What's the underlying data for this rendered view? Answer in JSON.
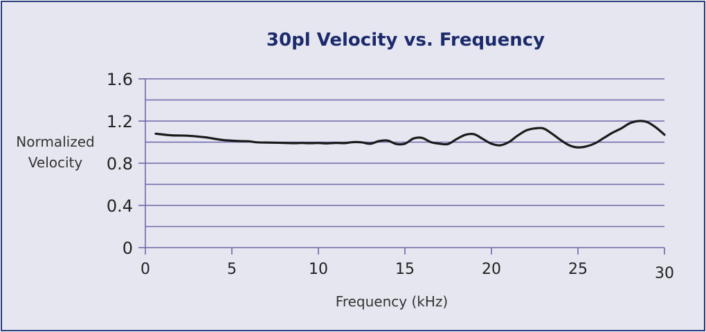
{
  "chart_data": {
    "type": "line",
    "title": "30pl Velocity vs. Frequency",
    "xlabel": "Frequency (kHz)",
    "ylabel_lines": [
      "Normalized",
      "Velocity"
    ],
    "xlim": [
      0,
      30
    ],
    "ylim": [
      0,
      1.6
    ],
    "xticks": [
      0,
      5,
      10,
      15,
      20,
      25,
      30
    ],
    "xtick_labels": [
      "0",
      "5",
      "10",
      "15",
      "20",
      "25",
      "30"
    ],
    "yticks": [
      0,
      0.4,
      0.8,
      1.2,
      1.6
    ],
    "ytick_labels": [
      "0",
      "0.4",
      "0.8",
      "1.2",
      "1.6"
    ],
    "gridlines_y": [
      0.2,
      0.4,
      0.6,
      0.8,
      1.0,
      1.2,
      1.4,
      1.6
    ],
    "grid": true,
    "series": [
      {
        "name": "30pl Velocity",
        "color": "#1a1a1a",
        "x": [
          0.6,
          1.5,
          2.5,
          3.5,
          4.5,
          5.5,
          6.0,
          6.5,
          7.5,
          8.5,
          9.0,
          9.5,
          10.0,
          10.5,
          11.0,
          11.5,
          12.0,
          12.5,
          13.0,
          13.5,
          14.0,
          14.5,
          15.0,
          15.5,
          16.0,
          16.5,
          17.0,
          17.5,
          18.0,
          18.5,
          19.0,
          19.5,
          20.0,
          20.5,
          21.0,
          21.5,
          22.0,
          22.5,
          23.0,
          23.5,
          24.0,
          24.5,
          25.0,
          25.5,
          26.0,
          26.5,
          27.0,
          27.5,
          28.0,
          28.5,
          29.0,
          29.5,
          30.0
        ],
        "values": [
          1.08,
          1.065,
          1.06,
          1.045,
          1.02,
          1.01,
          1.008,
          0.998,
          0.995,
          0.99,
          0.992,
          0.99,
          0.992,
          0.988,
          0.993,
          0.99,
          1.0,
          0.998,
          0.985,
          1.01,
          1.015,
          0.982,
          0.985,
          1.035,
          1.04,
          1.0,
          0.985,
          0.982,
          1.03,
          1.07,
          1.075,
          1.03,
          0.985,
          0.97,
          1.0,
          1.06,
          1.11,
          1.13,
          1.13,
          1.08,
          1.02,
          0.97,
          0.95,
          0.96,
          0.99,
          1.04,
          1.09,
          1.13,
          1.18,
          1.2,
          1.19,
          1.14,
          1.07
        ]
      }
    ]
  },
  "colors": {
    "background": "#e6e6f0",
    "border": "#243a7a",
    "gridline": "#6b66a8",
    "title": "#1b2a6b",
    "line": "#1a1a1a"
  }
}
